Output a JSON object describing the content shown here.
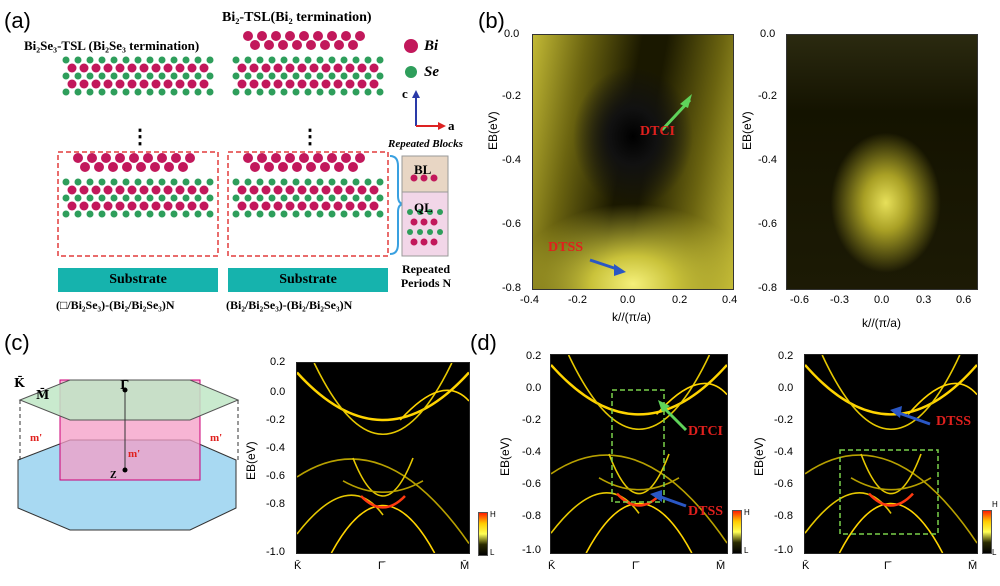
{
  "panel_a": {
    "label": "(a)",
    "bi2_title": "Bi₂-TSL(Bi₂ termination)",
    "bi2se3_title": "Bi₂Se₃-TSL (Bi₂Se₃ termination)",
    "legend_bi": "Bi",
    "legend_se": "Se",
    "axis_c": "c",
    "axis_a": "a",
    "repeated_blocks": "Repeated Blocks",
    "bl": "BL",
    "ql": "QL",
    "substrate_left": "Substrate",
    "substrate_right": "Substrate",
    "repeated_periods": "Repeated Periods N",
    "formula_left": "(□/Bi₂Se₃)-(Bi₂/Bi₂Se₃)N",
    "formula_right": "(Bi₂/Bi₂Se₃)-(Bi₂/Bi₂Se₃)N",
    "dots": "⋮"
  },
  "panel_b": {
    "label": "(b)",
    "ylabel": "EB(eV)",
    "left": {
      "xlabel": "k//(π/a)",
      "xticks": [
        "-0.4",
        "-0.2",
        "0.0",
        "0.2",
        "0.4"
      ],
      "yticks": [
        "0.0",
        "-0.2",
        "-0.4",
        "-0.6",
        "-0.8"
      ],
      "label_tci": "DTCI",
      "label_tss": "DTSS"
    },
    "right": {
      "xlabel": "k//(π/a)",
      "xticks": [
        "-0.6",
        "-0.3",
        "0.0",
        "0.3",
        "0.6"
      ],
      "yticks": [
        "0.0",
        "-0.2",
        "-0.4",
        "-0.6",
        "-0.8"
      ]
    }
  },
  "panel_c": {
    "label": "(c)",
    "bz": {
      "kbar": "K̄",
      "mbar": "M̄",
      "gbar": "Γ̄",
      "m1": "m'",
      "m2": "m'",
      "m3": "m'",
      "z": "Z"
    },
    "band": {
      "ylabel": "EB(eV)",
      "yticks": [
        "0.2",
        "0.0",
        "-0.2",
        "-0.4",
        "-0.6",
        "-0.8",
        "-1.0"
      ],
      "xticks": [
        "K̄",
        "Γ̄",
        "M̄"
      ],
      "legend_h": "H",
      "legend_l": "L"
    }
  },
  "panel_d": {
    "label": "(d)",
    "left": {
      "ylabel": "EB(eV)",
      "yticks": [
        "0.2",
        "0.0",
        "-0.2",
        "-0.4",
        "-0.6",
        "-0.8",
        "-1.0"
      ],
      "xticks": [
        "K̄",
        "Γ̄",
        "M̄"
      ],
      "label_tci": "DTCI",
      "label_tss": "DTSS",
      "legend_h": "H",
      "legend_l": "L"
    },
    "right": {
      "ylabel": "EB(eV)",
      "yticks": [
        "0.2",
        "0.0",
        "-0.2",
        "-0.4",
        "-0.6",
        "-0.8",
        "-1.0"
      ],
      "xticks": [
        "K̄",
        "Γ̄",
        "M̄"
      ],
      "label_tss": "DTSS",
      "legend_h": "H",
      "legend_l": "L"
    }
  },
  "colors": {
    "bi": "#c2185b",
    "se": "#2e9e5b",
    "substrate": "#16b3ad",
    "dashed_red": "#e23b3b",
    "dashed_green": "#7bd14a",
    "arrow_green": "#5fd35a",
    "arrow_blue": "#2a57c4",
    "label_red": "#e0201d"
  }
}
